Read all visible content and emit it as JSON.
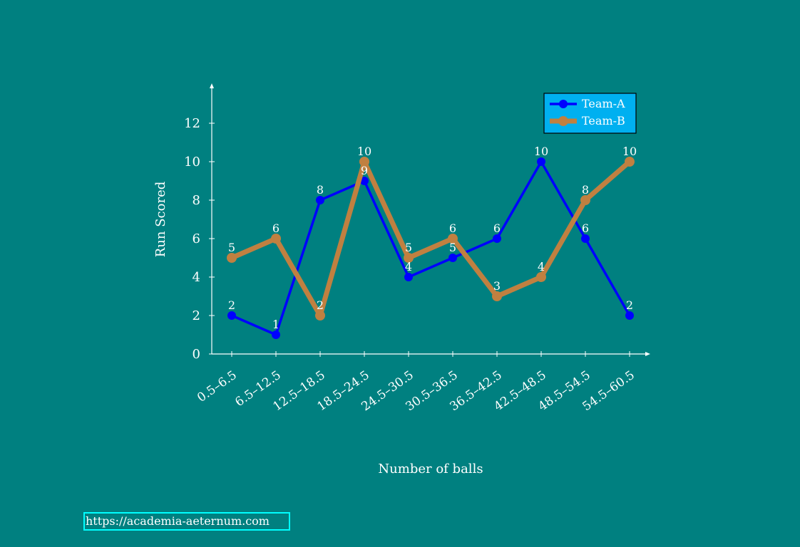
{
  "colors": {
    "background": "#008080",
    "axis": "#ffffff",
    "text": "#ffffff",
    "legend_fill": "#00b0f0",
    "url_border": "#00ffff"
  },
  "chart_data": {
    "type": "line",
    "title": "",
    "xlabel": "Number of balls",
    "ylabel": "Run Scored",
    "categories": [
      "0.5–6.5",
      "6.5–12.5",
      "12.5–18.5",
      "18.5–24.5",
      "24.5–30.5",
      "30.5–36.5",
      "36.5–42.5",
      "42.5–48.5",
      "48.5–54.5",
      "54.5–60.5"
    ],
    "yticks": [
      0,
      2,
      4,
      6,
      8,
      10,
      12
    ],
    "ylim": [
      0,
      14
    ],
    "grid": false,
    "legend_position": "top-right",
    "series": [
      {
        "name": "Team-A",
        "color": "#0000ff",
        "values": [
          2,
          1,
          8,
          9,
          4,
          5,
          6,
          10,
          6,
          2
        ]
      },
      {
        "name": "Team-B",
        "color": "#c08040",
        "values": [
          5,
          6,
          2,
          10,
          5,
          6,
          3,
          4,
          8,
          10
        ]
      }
    ]
  },
  "footer": {
    "url": "https://academia-aeternum.com"
  }
}
